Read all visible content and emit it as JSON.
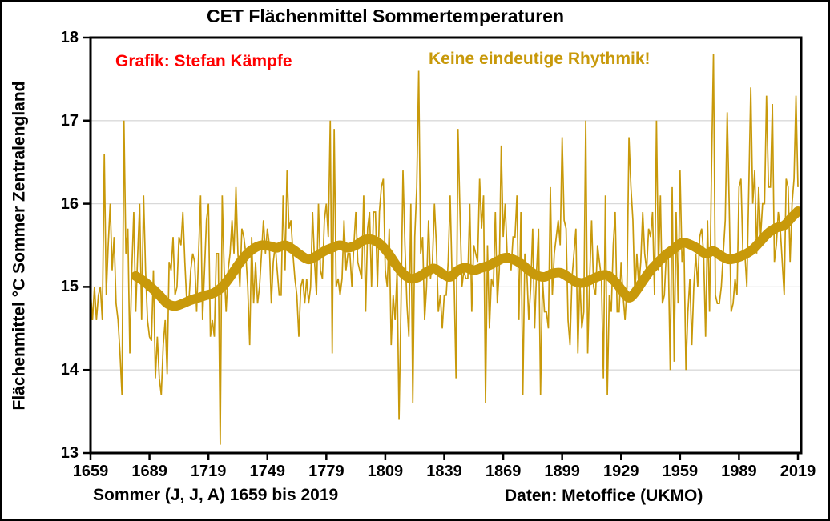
{
  "title": "CET Flächenmittel Sommertemperaturen",
  "annotations": {
    "credit": {
      "text": "Grafik: Stefan Kämpfe",
      "color": "#FF0000"
    },
    "note": {
      "text": "Keine eindeutige Rhythmik!",
      "color": "#C8990A"
    }
  },
  "axes": {
    "y_label": "Flächenmittel °C Sommer Zentralengland",
    "y_ticks": [
      "18",
      "17",
      "16",
      "15",
      "14",
      "13"
    ],
    "y_tick_values": [
      18,
      17,
      16,
      15,
      14,
      13
    ],
    "x_ticks": [
      "1659",
      "1689",
      "1719",
      "1749",
      "1779",
      "1809",
      "1839",
      "1869",
      "1899",
      "1929",
      "1959",
      "1989",
      "2019"
    ],
    "x_tick_values": [
      1659,
      1689,
      1719,
      1749,
      1779,
      1809,
      1839,
      1869,
      1899,
      1929,
      1959,
      1989,
      2019
    ]
  },
  "footer": {
    "left": "Sommer (J, J, A) 1659 bis 2019",
    "right": "Daten: Metoffice (UKMO)"
  },
  "colors": {
    "line_gold": "#C8990A",
    "gridline": "#D9D9D9",
    "axis": "#000000",
    "background": "#FFFFFF"
  },
  "chart_data": {
    "type": "line",
    "title": "CET Flächenmittel Sommertemperaturen",
    "xlabel": "Sommer (J, J, A) 1659 bis 2019",
    "ylabel": "Flächenmittel °C Sommer Zentralengland",
    "xlim": [
      1659,
      2021
    ],
    "ylim": [
      13,
      18
    ],
    "grid": "horizontal, at 14/15/16/17, light gray",
    "legend": "none",
    "x_start": 1659,
    "x_step": 1,
    "series": [
      {
        "name": "annual_summer_mean",
        "style": "thin",
        "values": [
          14.95,
          14.6,
          15.0,
          14.6,
          14.9,
          15.0,
          14.6,
          16.6,
          14.9,
          15.5,
          16.0,
          15.2,
          15.6,
          14.8,
          14.6,
          14.2,
          13.7,
          17.0,
          15.4,
          15.7,
          14.2,
          15.2,
          15.9,
          14.7,
          15.4,
          16.0,
          14.6,
          16.1,
          15.2,
          14.6,
          14.4,
          14.35,
          15.2,
          13.9,
          14.4,
          13.9,
          13.7,
          14.3,
          14.6,
          13.95,
          15.3,
          15.2,
          15.6,
          14.9,
          15.0,
          15.6,
          15.5,
          15.9,
          15.3,
          14.8,
          14.8,
          15.2,
          15.4,
          15.3,
          14.7,
          15.4,
          16.1,
          14.6,
          15.2,
          15.8,
          16.0,
          14.4,
          14.6,
          14.4,
          15.4,
          15.4,
          13.1,
          16.1,
          15.2,
          14.7,
          15.2,
          15.4,
          15.8,
          15.4,
          16.2,
          15.4,
          15.0,
          15.7,
          15.6,
          15.4,
          15.0,
          14.3,
          15.6,
          14.8,
          15.3,
          14.8,
          15.0,
          15.4,
          15.8,
          15.4,
          15.7,
          15.5,
          14.8,
          15.3,
          15.5,
          15.2,
          14.9,
          14.9,
          16.1,
          15.2,
          16.4,
          15.7,
          15.8,
          15.4,
          15.1,
          14.9,
          14.4,
          15.0,
          15.1,
          14.8,
          15.1,
          14.8,
          15.0,
          15.9,
          15.3,
          14.9,
          16.0,
          15.2,
          15.1,
          15.8,
          16.0,
          15.6,
          17.0,
          14.2,
          16.9,
          15.0,
          15.1,
          14.9,
          15.1,
          15.8,
          15.2,
          15.4,
          15.4,
          15.0,
          15.5,
          15.9,
          15.3,
          15.2,
          15.1,
          16.1,
          14.7,
          15.7,
          15.9,
          15.0,
          15.9,
          15.9,
          15.0,
          15.9,
          16.2,
          16.3,
          15.2,
          15.0,
          15.7,
          14.3,
          14.9,
          14.6,
          15.2,
          13.4,
          14.8,
          16.4,
          15.5,
          14.8,
          14.4,
          16.0,
          13.6,
          15.6,
          16.2,
          17.6,
          15.4,
          15.6,
          14.6,
          15.0,
          15.8,
          15.1,
          15.3,
          16.0,
          15.5,
          14.7,
          14.9,
          14.5,
          14.9,
          14.9,
          15.3,
          16.1,
          15.1,
          15.1,
          13.9,
          16.9,
          15.9,
          15.0,
          15.2,
          15.1,
          15.1,
          16.0,
          14.7,
          15.5,
          15.4,
          15.3,
          16.3,
          15.7,
          16.1,
          13.6,
          15.5,
          14.5,
          15.1,
          15.0,
          15.9,
          14.8,
          15.2,
          16.7,
          15.6,
          16.0,
          15.4,
          15.4,
          15.2,
          15.6,
          15.6,
          16.1,
          14.6,
          15.9,
          13.7,
          15.4,
          15.2,
          14.6,
          15.0,
          15.7,
          14.5,
          15.2,
          15.7,
          13.7,
          15.1,
          14.7,
          14.7,
          14.5,
          16.2,
          14.9,
          15.4,
          15.6,
          15.8,
          15.5,
          16.8,
          15.8,
          15.7,
          14.6,
          14.3,
          15.1,
          15.4,
          15.7,
          14.2,
          15.1,
          14.5,
          14.7,
          17.0,
          14.2,
          15.1,
          15.8,
          15.0,
          14.9,
          15.5,
          15.3,
          15.1,
          13.9,
          16.1,
          13.7,
          14.9,
          14.7,
          15.5,
          15.9,
          14.7,
          14.7,
          15.3,
          14.9,
          14.6,
          15.0,
          16.8,
          16.2,
          15.8,
          14.9,
          15.4,
          15.0,
          15.3,
          15.9,
          15.4,
          15.2,
          15.7,
          15.6,
          15.9,
          14.9,
          17.0,
          15.2,
          16.1,
          14.8,
          14.9,
          15.4,
          15.4,
          14.0,
          16.2,
          14.1,
          15.9,
          14.8,
          16.4,
          15.3,
          15.5,
          14.0,
          14.7,
          15.1,
          14.3,
          15.0,
          15.4,
          15.0,
          15.6,
          15.7,
          15.4,
          14.4,
          15.8,
          14.7,
          16.4,
          17.8,
          14.9,
          14.8,
          14.8,
          15.0,
          15.4,
          15.8,
          17.1,
          16.0,
          14.7,
          14.8,
          15.1,
          14.9,
          16.2,
          16.3,
          15.4,
          15.4,
          15.0,
          16.2,
          17.4,
          16.0,
          16.4,
          15.4,
          16.2,
          15.6,
          16.0,
          16.0,
          17.3,
          16.2,
          16.2,
          17.2,
          15.3,
          15.5,
          15.9,
          15.7,
          15.3,
          14.9,
          16.3,
          16.2,
          15.3,
          16.0,
          16.3,
          17.3,
          16.2
        ]
      },
      {
        "name": "smoothed_mean",
        "style": "thick",
        "points": [
          [
            1682,
            15.13
          ],
          [
            1686,
            15.07
          ],
          [
            1690,
            14.99
          ],
          [
            1694,
            14.9
          ],
          [
            1698,
            14.8
          ],
          [
            1702,
            14.77
          ],
          [
            1706,
            14.8
          ],
          [
            1710,
            14.84
          ],
          [
            1714,
            14.87
          ],
          [
            1718,
            14.9
          ],
          [
            1722,
            14.93
          ],
          [
            1726,
            15.0
          ],
          [
            1730,
            15.12
          ],
          [
            1734,
            15.26
          ],
          [
            1738,
            15.38
          ],
          [
            1742,
            15.46
          ],
          [
            1746,
            15.5
          ],
          [
            1750,
            15.49
          ],
          [
            1754,
            15.47
          ],
          [
            1758,
            15.5
          ],
          [
            1762,
            15.45
          ],
          [
            1766,
            15.38
          ],
          [
            1770,
            15.33
          ],
          [
            1774,
            15.37
          ],
          [
            1778,
            15.43
          ],
          [
            1782,
            15.47
          ],
          [
            1786,
            15.5
          ],
          [
            1790,
            15.47
          ],
          [
            1794,
            15.5
          ],
          [
            1798,
            15.56
          ],
          [
            1802,
            15.57
          ],
          [
            1806,
            15.52
          ],
          [
            1810,
            15.42
          ],
          [
            1814,
            15.28
          ],
          [
            1818,
            15.16
          ],
          [
            1822,
            15.1
          ],
          [
            1826,
            15.12
          ],
          [
            1830,
            15.18
          ],
          [
            1834,
            15.22
          ],
          [
            1838,
            15.16
          ],
          [
            1842,
            15.12
          ],
          [
            1846,
            15.2
          ],
          [
            1850,
            15.23
          ],
          [
            1854,
            15.2
          ],
          [
            1858,
            15.23
          ],
          [
            1862,
            15.26
          ],
          [
            1866,
            15.31
          ],
          [
            1870,
            15.35
          ],
          [
            1874,
            15.33
          ],
          [
            1878,
            15.28
          ],
          [
            1882,
            15.2
          ],
          [
            1886,
            15.14
          ],
          [
            1890,
            15.12
          ],
          [
            1894,
            15.16
          ],
          [
            1898,
            15.17
          ],
          [
            1902,
            15.12
          ],
          [
            1906,
            15.06
          ],
          [
            1910,
            15.05
          ],
          [
            1914,
            15.09
          ],
          [
            1918,
            15.13
          ],
          [
            1922,
            15.14
          ],
          [
            1926,
            15.06
          ],
          [
            1930,
            14.94
          ],
          [
            1933,
            14.87
          ],
          [
            1936,
            14.93
          ],
          [
            1940,
            15.07
          ],
          [
            1944,
            15.2
          ],
          [
            1948,
            15.3
          ],
          [
            1952,
            15.39
          ],
          [
            1956,
            15.46
          ],
          [
            1960,
            15.53
          ],
          [
            1964,
            15.51
          ],
          [
            1968,
            15.46
          ],
          [
            1972,
            15.4
          ],
          [
            1976,
            15.43
          ],
          [
            1980,
            15.37
          ],
          [
            1984,
            15.33
          ],
          [
            1988,
            15.35
          ],
          [
            1992,
            15.39
          ],
          [
            1996,
            15.45
          ],
          [
            2000,
            15.55
          ],
          [
            2004,
            15.65
          ],
          [
            2008,
            15.71
          ],
          [
            2012,
            15.74
          ],
          [
            2016,
            15.84
          ],
          [
            2019,
            15.91
          ]
        ]
      }
    ]
  }
}
